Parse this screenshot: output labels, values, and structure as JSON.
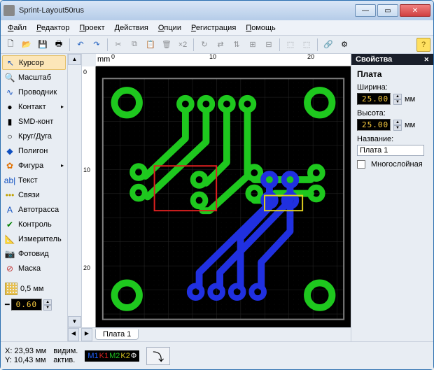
{
  "window": {
    "title": "Sprint-Layout50rus"
  },
  "menu": [
    "Файл",
    "Редактор",
    "Проект",
    "Действия",
    "Опции",
    "Регистрация",
    "Помощь"
  ],
  "tools": [
    {
      "icon": "↖",
      "label": "Курсор",
      "color": "#1050c0",
      "selected": true
    },
    {
      "icon": "🔍",
      "label": "Масштаб",
      "color": "#1050c0"
    },
    {
      "icon": "∿",
      "label": "Проводник",
      "color": "#1050c0"
    },
    {
      "icon": "●",
      "label": "Контакт",
      "color": "#000",
      "arrow": true
    },
    {
      "icon": "▮",
      "label": "SMD-конт",
      "color": "#000"
    },
    {
      "icon": "○",
      "label": "Круг/Дуга",
      "color": "#000"
    },
    {
      "icon": "◆",
      "label": "Полигон",
      "color": "#1050c0"
    },
    {
      "icon": "✿",
      "label": "Фигура",
      "color": "#e07000",
      "arrow": true
    },
    {
      "icon": "ab|",
      "label": "Текст",
      "color": "#1050c0"
    },
    {
      "icon": "•••",
      "label": "Связи",
      "color": "#c0a000"
    },
    {
      "icon": "A",
      "label": "Автотрасса",
      "color": "#1050c0"
    },
    {
      "icon": "✔",
      "label": "Контроль",
      "color": "#008000"
    },
    {
      "icon": "📐",
      "label": "Измеритель",
      "color": "#000"
    },
    {
      "icon": "📷",
      "label": "Фотовид",
      "color": "#555"
    },
    {
      "icon": "⊘",
      "label": "Маска",
      "color": "#c03030"
    }
  ],
  "grid": {
    "label": "0,5 мм"
  },
  "trackwidth": "0.60",
  "ruler": {
    "unit": "mm",
    "ticks": [
      "0",
      "10",
      "20"
    ]
  },
  "props": {
    "header": "Свойства",
    "title": "Плата",
    "width_label": "Ширина:",
    "width_value": "25.00",
    "height_label": "Высота:",
    "height_value": "25.00",
    "unit": "мм",
    "name_label": "Название:",
    "name_value": "Плата 1",
    "multilayer_label": "Многослойная"
  },
  "tab": "Плата 1",
  "status": {
    "x_label": "X:",
    "x": "23,93 мм",
    "y_label": "Y:",
    "y": "10,43 мм",
    "vis": "видим.",
    "act": "актив.",
    "layers": [
      {
        "t": "M1",
        "c": "#2060ff"
      },
      {
        "t": "K1",
        "c": "#d02020"
      },
      {
        "t": "M2",
        "c": "#20c020"
      },
      {
        "t": "K2",
        "c": "#d0c020"
      },
      {
        "t": "Ф",
        "c": "#ffffff"
      }
    ]
  },
  "colors": {
    "cu_top": "#1ec81e",
    "cu_bot": "#2030e0",
    "outline_red": "#e02020",
    "outline_yel": "#e0d020",
    "pcb_border": "#808080"
  }
}
